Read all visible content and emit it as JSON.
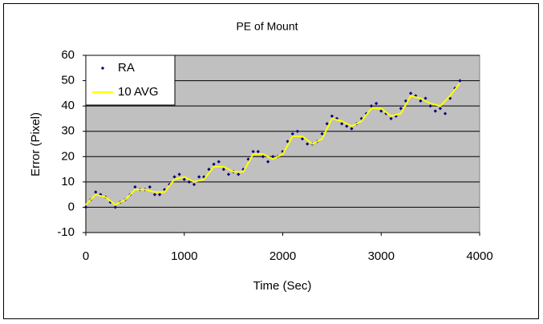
{
  "chart_data": {
    "type": "scatter",
    "title": "PE of Mount",
    "x_label": "Time (Sec)",
    "y_label": "Error (Pixel)",
    "xlim": [
      0,
      4000
    ],
    "xticks": [
      0,
      1000,
      2000,
      3000,
      4000
    ],
    "ylim": [
      -10,
      60
    ],
    "yticks": [
      -10,
      0,
      10,
      20,
      30,
      40,
      50,
      60
    ],
    "grid": true,
    "legend": "top-left",
    "series": [
      {
        "name": "RA",
        "type": "scatter",
        "color": "#000080",
        "x": [
          0,
          50,
          100,
          150,
          200,
          250,
          300,
          350,
          400,
          450,
          500,
          550,
          600,
          650,
          700,
          750,
          800,
          850,
          900,
          950,
          1000,
          1050,
          1100,
          1150,
          1200,
          1250,
          1300,
          1350,
          1400,
          1450,
          1500,
          1550,
          1600,
          1650,
          1700,
          1750,
          1800,
          1850,
          1900,
          1950,
          2000,
          2050,
          2100,
          2150,
          2200,
          2250,
          2300,
          2350,
          2400,
          2450,
          2500,
          2550,
          2600,
          2650,
          2700,
          2750,
          2800,
          2850,
          2900,
          2950,
          3000,
          3050,
          3100,
          3150,
          3200,
          3250,
          3300,
          3350,
          3400,
          3450,
          3500,
          3550,
          3600,
          3650,
          3700,
          3750,
          3800
        ],
        "values": [
          0,
          3,
          6,
          5,
          4,
          2,
          0,
          2,
          3,
          5,
          8,
          7,
          7,
          8,
          5,
          5,
          7,
          9,
          12,
          13,
          11,
          10,
          9,
          12,
          12,
          15,
          17,
          18,
          15,
          13,
          14,
          13,
          15,
          19,
          22,
          22,
          20,
          18,
          20,
          20,
          22,
          26,
          29,
          30,
          27,
          25,
          25,
          26,
          29,
          33,
          36,
          35,
          33,
          32,
          31,
          33,
          35,
          37,
          40,
          41,
          38,
          37,
          35,
          36,
          39,
          42,
          45,
          44,
          42,
          43,
          40,
          38,
          39,
          37,
          43,
          47,
          50
        ]
      },
      {
        "name": "10 AVG",
        "type": "line",
        "color": "#ffff00",
        "x": [
          0,
          100,
          200,
          300,
          400,
          500,
          600,
          700,
          800,
          900,
          1000,
          1100,
          1200,
          1300,
          1400,
          1500,
          1600,
          1700,
          1800,
          1900,
          2000,
          2100,
          2200,
          2300,
          2400,
          2500,
          2600,
          2700,
          2800,
          2900,
          3000,
          3100,
          3200,
          3300,
          3400,
          3500,
          3600,
          3700,
          3800
        ],
        "values": [
          1,
          5,
          4,
          1,
          3,
          7,
          7,
          6,
          6,
          11,
          12,
          10,
          11,
          16,
          16,
          14,
          14,
          21,
          21,
          19,
          21,
          28,
          28,
          25,
          27,
          35,
          34,
          32,
          34,
          39,
          39,
          36,
          37,
          44,
          43,
          41,
          40,
          44,
          49
        ]
      }
    ]
  }
}
